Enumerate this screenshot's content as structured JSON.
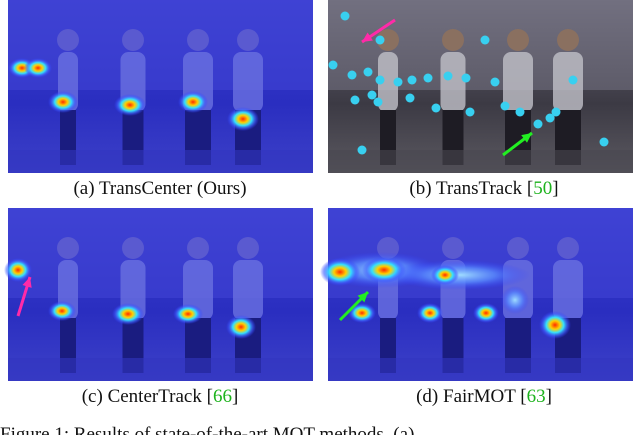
{
  "panels": [
    {
      "caption": {
        "prefix": "(a) TransCenter (Ours)"
      }
    },
    {
      "caption": {
        "prefix": "(b) TransTrack [",
        "ref": "50",
        "suffix": "]"
      }
    },
    {
      "caption": {
        "prefix": "(c) CenterTrack [",
        "ref": "66",
        "suffix": "]"
      }
    },
    {
      "caption": {
        "prefix": "(d) FairMOT [",
        "ref": "63",
        "suffix": "]"
      }
    }
  ],
  "figure_caption": "Figure 1:  Results of state-of-the-art MOT methods. (a)"
}
